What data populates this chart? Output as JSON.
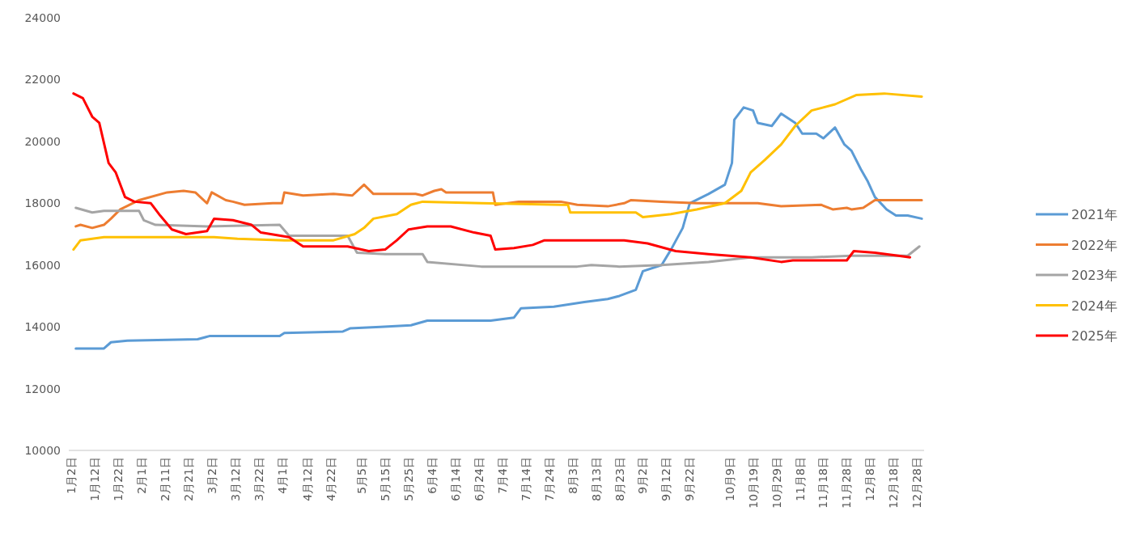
{
  "chart_data": {
    "type": "line",
    "legend": "right",
    "xlim": [
      "--01-01",
      "--12-31"
    ],
    "ylim": [
      10000,
      24000
    ],
    "yticks": [
      10000,
      12000,
      14000,
      16000,
      18000,
      20000,
      22000,
      24000
    ],
    "xticks": [
      {
        "value": "--01-02",
        "label": "1月2日"
      },
      {
        "value": "--01-12",
        "label": "1月12日"
      },
      {
        "value": "--01-22",
        "label": "1月22日"
      },
      {
        "value": "--02-01",
        "label": "2月1日"
      },
      {
        "value": "--02-11",
        "label": "2月11日"
      },
      {
        "value": "--02-21",
        "label": "2月21日"
      },
      {
        "value": "--03-02",
        "label": "3月2日"
      },
      {
        "value": "--03-12",
        "label": "3月12日"
      },
      {
        "value": "--03-22",
        "label": "3月22日"
      },
      {
        "value": "--04-01",
        "label": "4月1日"
      },
      {
        "value": "--04-12",
        "label": "4月12日"
      },
      {
        "value": "--04-22",
        "label": "4月22日"
      },
      {
        "value": "--05-05",
        "label": "5月5日"
      },
      {
        "value": "--05-15",
        "label": "5月15日"
      },
      {
        "value": "--05-25",
        "label": "5月25日"
      },
      {
        "value": "--06-04",
        "label": "6月4日"
      },
      {
        "value": "--06-14",
        "label": "6月14日"
      },
      {
        "value": "--06-24",
        "label": "6月24日"
      },
      {
        "value": "--07-04",
        "label": "7月4日"
      },
      {
        "value": "--07-14",
        "label": "7月14日"
      },
      {
        "value": "--07-24",
        "label": "7月24日"
      },
      {
        "value": "--08-03",
        "label": "8月3日"
      },
      {
        "value": "--08-13",
        "label": "8月13日"
      },
      {
        "value": "--08-23",
        "label": "8月23日"
      },
      {
        "value": "--09-02",
        "label": "9月2日"
      },
      {
        "value": "--09-12",
        "label": "9月12日"
      },
      {
        "value": "--09-22",
        "label": "9月22日"
      },
      {
        "value": "--10-09",
        "label": "10月9日"
      },
      {
        "value": "--10-19",
        "label": "10月19日"
      },
      {
        "value": "--10-29",
        "label": "10月29日"
      },
      {
        "value": "--11-08",
        "label": "11月8日"
      },
      {
        "value": "--11-18",
        "label": "11月18日"
      },
      {
        "value": "--11-28",
        "label": "11月28日"
      },
      {
        "value": "--12-08",
        "label": "12月8日"
      },
      {
        "value": "--12-18",
        "label": "12月18日"
      },
      {
        "value": "--12-28",
        "label": "12月28日"
      }
    ],
    "series": [
      {
        "name": "2021年",
        "color": "#5b9bd5",
        "x": [
          "--01-04",
          "--01-16",
          "--01-19",
          "--01-26",
          "--02-25",
          "--03-01",
          "--03-31",
          "--04-02",
          "--04-27",
          "--04-30",
          "--05-13",
          "--05-26",
          "--06-02",
          "--06-29",
          "--07-09",
          "--07-12",
          "--07-26",
          "--08-08",
          "--08-18",
          "--08-23",
          "--08-30",
          "--09-02",
          "--09-10",
          "--09-14",
          "--09-19",
          "--09-22",
          "--09-30",
          "--10-07",
          "--10-10",
          "--10-11",
          "--10-15",
          "--10-19",
          "--10-21",
          "--10-27",
          "--10-31",
          "--11-06",
          "--11-09",
          "--11-15",
          "--11-18",
          "--11-23",
          "--11-27",
          "--11-30",
          "--12-04",
          "--12-07",
          "--12-10",
          "--12-15",
          "--12-19",
          "--12-24",
          "--12-30"
        ],
        "values": [
          13300,
          13300,
          13500,
          13550,
          13600,
          13700,
          13700,
          13800,
          13850,
          13950,
          14000,
          14050,
          14200,
          14200,
          14300,
          14600,
          14650,
          14800,
          14900,
          15000,
          15200,
          15800,
          16000,
          16500,
          17200,
          18000,
          18300,
          18600,
          19300,
          20700,
          21100,
          21000,
          20600,
          20500,
          20900,
          20600,
          20250,
          20250,
          20100,
          20450,
          19900,
          19700,
          19100,
          18700,
          18200,
          17800,
          17600,
          17600,
          17500
        ]
      },
      {
        "name": "2022年",
        "color": "#ed7d31",
        "x": [
          "--01-04",
          "--01-06",
          "--01-11",
          "--01-16",
          "--01-19",
          "--01-23",
          "--01-31",
          "--02-12",
          "--02-19",
          "--02-24",
          "--02-29",
          "--03-02",
          "--03-08",
          "--03-11",
          "--03-16",
          "--03-28",
          "--04-01",
          "--04-02",
          "--04-10",
          "--04-23",
          "--05-01",
          "--05-06",
          "--05-10",
          "--05-28",
          "--05-31",
          "--06-05",
          "--06-08",
          "--06-10",
          "--06-30",
          "--07-01",
          "--07-11",
          "--07-29",
          "--08-05",
          "--08-18",
          "--08-25",
          "--08-28",
          "--09-10",
          "--09-25",
          "--10-21",
          "--10-31",
          "--11-17",
          "--11-22",
          "--11-28",
          "--11-30",
          "--12-05",
          "--12-10",
          "--12-30"
        ],
        "values": [
          17250,
          17300,
          17200,
          17300,
          17500,
          17800,
          18100,
          18350,
          18400,
          18350,
          18000,
          18350,
          18100,
          18050,
          17950,
          18000,
          18000,
          18350,
          18250,
          18300,
          18250,
          18600,
          18300,
          18300,
          18250,
          18400,
          18450,
          18350,
          18350,
          17950,
          18050,
          18050,
          17950,
          17900,
          18000,
          18100,
          18050,
          18000,
          18000,
          17900,
          17950,
          17800,
          17850,
          17800,
          17850,
          18100,
          18100
        ]
      },
      {
        "name": "2023年",
        "color": "#a5a5a5",
        "x": [
          "--01-04",
          "--01-11",
          "--01-16",
          "--01-31",
          "--02-02",
          "--02-07",
          "--02-29",
          "--03-31",
          "--04-04",
          "--04-29",
          "--05-03",
          "--05-15",
          "--05-31",
          "--06-02",
          "--06-25",
          "--08-05",
          "--08-11",
          "--08-23",
          "--09-10",
          "--09-30",
          "--10-18",
          "--11-13",
          "--11-30",
          "--12-24",
          "--12-29"
        ],
        "values": [
          17850,
          17700,
          17750,
          17750,
          17450,
          17300,
          17250,
          17300,
          16950,
          16950,
          16400,
          16350,
          16350,
          16100,
          15950,
          15950,
          16000,
          15950,
          16000,
          16100,
          16250,
          16250,
          16300,
          16300,
          16600
        ]
      },
      {
        "name": "2024年",
        "color": "#ffc000",
        "x": [
          "--01-03",
          "--01-06",
          "--01-16",
          "--03-03",
          "--03-13",
          "--04-02",
          "--04-23",
          "--05-02",
          "--05-06",
          "--05-10",
          "--05-20",
          "--05-26",
          "--05-31",
          "--06-25",
          "--07-29",
          "--08-01",
          "--08-02",
          "--08-30",
          "--09-02",
          "--09-14",
          "--09-25",
          "--10-07",
          "--10-14",
          "--10-18",
          "--10-24",
          "--10-31",
          "--11-06",
          "--11-13",
          "--11-23",
          "--12-02",
          "--12-14",
          "--12-30"
        ],
        "values": [
          16500,
          16800,
          16900,
          16900,
          16850,
          16800,
          16800,
          17000,
          17200,
          17500,
          17650,
          17950,
          18050,
          18000,
          17950,
          17950,
          17700,
          17700,
          17550,
          17650,
          17800,
          18000,
          18400,
          19000,
          19400,
          19900,
          20500,
          21000,
          21200,
          21500,
          21550,
          21450
        ]
      },
      {
        "name": "2025年",
        "color": "#ff0000",
        "x": [
          "--01-03",
          "--01-07",
          "--01-11",
          "--01-14",
          "--01-18",
          "--01-21",
          "--01-25",
          "--01-29",
          "--02-05",
          "--02-09",
          "--02-14",
          "--02-20",
          "--02-29",
          "--03-03",
          "--03-11",
          "--03-19",
          "--03-23",
          "--04-04",
          "--04-10",
          "--04-29",
          "--05-08",
          "--05-15",
          "--05-20",
          "--05-25",
          "--06-02",
          "--06-12",
          "--06-22",
          "--06-29",
          "--07-01",
          "--07-09",
          "--07-17",
          "--07-22",
          "--08-25",
          "--09-04",
          "--09-16",
          "--09-30",
          "--10-18",
          "--10-31",
          "--11-05",
          "--11-28",
          "--12-01",
          "--12-10",
          "--12-20",
          "--12-25"
        ],
        "values": [
          21550,
          21400,
          20800,
          20600,
          19300,
          19000,
          18200,
          18050,
          18000,
          17600,
          17150,
          17000,
          17100,
          17500,
          17450,
          17300,
          17050,
          16900,
          16600,
          16600,
          16450,
          16500,
          16800,
          17150,
          17250,
          17250,
          17050,
          16950,
          16500,
          16550,
          16650,
          16800,
          16800,
          16700,
          16450,
          16350,
          16250,
          16100,
          16150,
          16150,
          16450,
          16400,
          16300,
          16250
        ]
      }
    ]
  }
}
